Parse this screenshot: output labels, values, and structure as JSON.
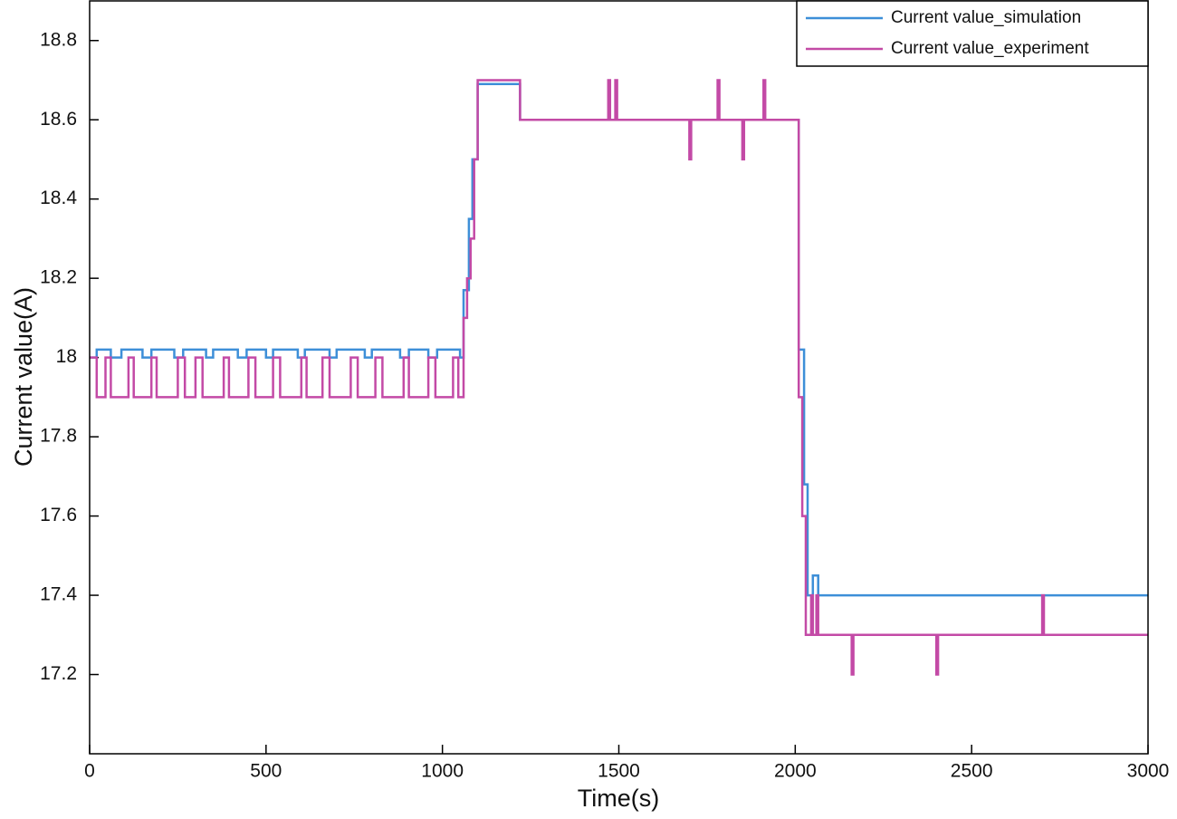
{
  "chart_data": {
    "type": "line",
    "xlabel": "Time(s)",
    "ylabel": "Current value(A)",
    "xlim": [
      0,
      3000
    ],
    "xticks": [
      0,
      500,
      1000,
      1500,
      2000,
      2500,
      3000
    ],
    "ylim": [
      17,
      18.9
    ],
    "yticks": [
      17.2,
      17.4,
      17.6,
      17.8,
      18,
      18.2,
      18.4,
      18.6,
      18.8
    ],
    "legend": "upper right",
    "series": [
      {
        "name": "Current value_simulation",
        "color": "#3d8fd8",
        "x": [
          0,
          20,
          20,
          60,
          60,
          90,
          90,
          150,
          150,
          175,
          175,
          240,
          240,
          265,
          265,
          330,
          330,
          350,
          350,
          420,
          420,
          445,
          445,
          500,
          500,
          520,
          520,
          590,
          590,
          610,
          610,
          680,
          680,
          700,
          700,
          780,
          780,
          800,
          800,
          880,
          880,
          905,
          905,
          960,
          960,
          985,
          985,
          1050,
          1050,
          1060,
          1060,
          1075,
          1075,
          1085,
          1085,
          1100,
          1100,
          1220,
          1220,
          2010,
          2010,
          2025,
          2025,
          2035,
          2035,
          2050,
          2050,
          2065,
          2065,
          3000
        ],
        "values": [
          18,
          18,
          18.02,
          18.02,
          18,
          18,
          18.02,
          18.02,
          18,
          18,
          18.02,
          18.02,
          18,
          18,
          18.02,
          18.02,
          18,
          18,
          18.02,
          18.02,
          18,
          18,
          18.02,
          18.02,
          18,
          18,
          18.02,
          18.02,
          18,
          18,
          18.02,
          18.02,
          18,
          18,
          18.02,
          18.02,
          18,
          18,
          18.02,
          18.02,
          18,
          18,
          18.02,
          18.02,
          18,
          18,
          18.02,
          18.02,
          18,
          18,
          18.17,
          18.17,
          18.35,
          18.35,
          18.5,
          18.5,
          18.69,
          18.69,
          18.6,
          18.6,
          18.02,
          18.02,
          17.68,
          17.68,
          17.4,
          17.4,
          17.45,
          17.45,
          17.4,
          17.4
        ]
      },
      {
        "name": "Current value_experiment",
        "color": "#c34aa6",
        "x": [
          0,
          20,
          20,
          45,
          45,
          60,
          60,
          110,
          110,
          125,
          125,
          175,
          175,
          190,
          190,
          250,
          250,
          270,
          270,
          300,
          300,
          320,
          320,
          380,
          380,
          395,
          395,
          450,
          450,
          470,
          470,
          520,
          520,
          540,
          540,
          600,
          600,
          615,
          615,
          660,
          660,
          680,
          680,
          740,
          740,
          760,
          760,
          810,
          810,
          830,
          830,
          890,
          890,
          905,
          905,
          960,
          960,
          980,
          980,
          1030,
          1030,
          1045,
          1045,
          1060,
          1060,
          1070,
          1070,
          1080,
          1080,
          1090,
          1090,
          1100,
          1100,
          1220,
          1220,
          1470,
          1470,
          1475,
          1475,
          1490,
          1490,
          1495,
          1495,
          1700,
          1700,
          1705,
          1705,
          1780,
          1780,
          1785,
          1785,
          1850,
          1850,
          1855,
          1855,
          1910,
          1910,
          1915,
          1915,
          2010,
          2010,
          2020,
          2020,
          2030,
          2030,
          2045,
          2045,
          2050,
          2050,
          2060,
          2060,
          2065,
          2065,
          2160,
          2160,
          2165,
          2165,
          2400,
          2400,
          2405,
          2405,
          2700,
          2700,
          2705,
          2705,
          3000
        ],
        "values": [
          18,
          18,
          17.9,
          17.9,
          18,
          18,
          17.9,
          17.9,
          18,
          18,
          17.9,
          17.9,
          18,
          18,
          17.9,
          17.9,
          18,
          18,
          17.9,
          17.9,
          18,
          18,
          17.9,
          17.9,
          18,
          18,
          17.9,
          17.9,
          18,
          18,
          17.9,
          17.9,
          18,
          18,
          17.9,
          17.9,
          18,
          18,
          17.9,
          17.9,
          18,
          18,
          17.9,
          17.9,
          18,
          18,
          17.9,
          17.9,
          18,
          18,
          17.9,
          17.9,
          18,
          18,
          17.9,
          17.9,
          18,
          18,
          17.9,
          17.9,
          18,
          18,
          17.9,
          17.9,
          18.1,
          18.1,
          18.2,
          18.2,
          18.3,
          18.3,
          18.5,
          18.5,
          18.7,
          18.7,
          18.6,
          18.6,
          18.7,
          18.7,
          18.6,
          18.6,
          18.7,
          18.7,
          18.6,
          18.6,
          18.5,
          18.5,
          18.6,
          18.6,
          18.7,
          18.7,
          18.6,
          18.6,
          18.5,
          18.5,
          18.6,
          18.6,
          18.7,
          18.7,
          18.6,
          18.6,
          17.9,
          17.9,
          17.6,
          17.6,
          17.3,
          17.3,
          17.4,
          17.4,
          17.3,
          17.3,
          17.4,
          17.4,
          17.3,
          17.3,
          17.2,
          17.2,
          17.3,
          17.3,
          17.2,
          17.2,
          17.3,
          17.3,
          17.4,
          17.4,
          17.3,
          17.3
        ]
      }
    ]
  }
}
